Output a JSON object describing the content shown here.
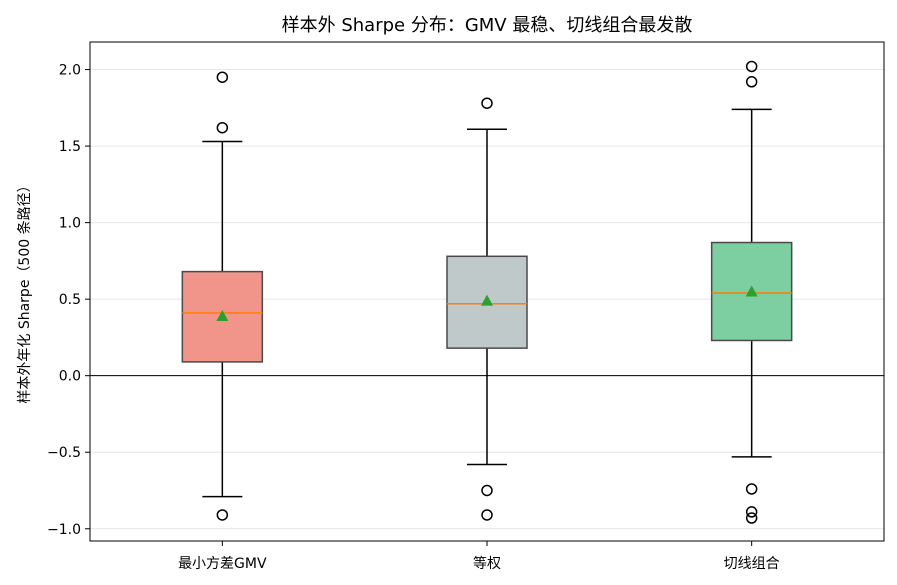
{
  "chart_data": {
    "type": "box",
    "title": "样本外 Sharpe 分布：GMV 最稳、切线组合最发散",
    "xlabel": "",
    "ylabel": "样本外年化 Sharpe（500 条路径）",
    "ylim": [
      -1.08,
      2.18
    ],
    "yticks": [
      -1.0,
      -0.5,
      0.0,
      0.5,
      1.0,
      1.5,
      2.0
    ],
    "ytick_labels": [
      "−1.0",
      "−0.5",
      "0.0",
      "0.5",
      "1.0",
      "1.5",
      "2.0"
    ],
    "grid": "y",
    "reference_line_y": 0,
    "categories": [
      "最小方差GMV",
      "等权",
      "切线组合"
    ],
    "series": [
      {
        "whisker_low": -0.79,
        "q1": 0.09,
        "median": 0.41,
        "q3": 0.68,
        "whisker_high": 1.53,
        "mean": 0.39,
        "outliers": [
          -0.91,
          1.62,
          1.95
        ]
      },
      {
        "whisker_low": -0.58,
        "q1": 0.18,
        "median": 0.47,
        "q3": 0.78,
        "whisker_high": 1.61,
        "mean": 0.49,
        "outliers": [
          -0.91,
          -0.75,
          1.78
        ]
      },
      {
        "whisker_low": -0.53,
        "q1": 0.23,
        "median": 0.54,
        "q3": 0.87,
        "whisker_high": 1.74,
        "mean": 0.55,
        "outliers": [
          -0.93,
          -0.89,
          -0.74,
          1.92,
          2.02
        ]
      }
    ],
    "colors": {
      "boxes": [
        "#f1948a",
        "#bfc9ca",
        "#7dcea0"
      ],
      "median": "#ff7f0e",
      "mean_marker": "#2ca02c",
      "grid": "#e6e6e6"
    }
  }
}
